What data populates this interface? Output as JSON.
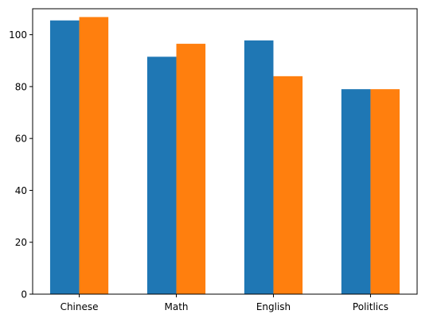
{
  "chart_data": {
    "type": "bar",
    "title": "",
    "xlabel": "",
    "ylabel": "",
    "categories": [
      "Chinese",
      "Math",
      "English",
      "Politlics"
    ],
    "series": [
      {
        "values": [
          105.5,
          91.5,
          97.8,
          79.0
        ],
        "color": "#1f77b4"
      },
      {
        "values": [
          106.8,
          96.5,
          84.0,
          79.0
        ],
        "color": "#ff7f0e"
      }
    ],
    "ylim": [
      0,
      110
    ],
    "yticks": [
      0,
      20,
      40,
      60,
      80,
      100
    ],
    "grid": false,
    "legend": false
  }
}
